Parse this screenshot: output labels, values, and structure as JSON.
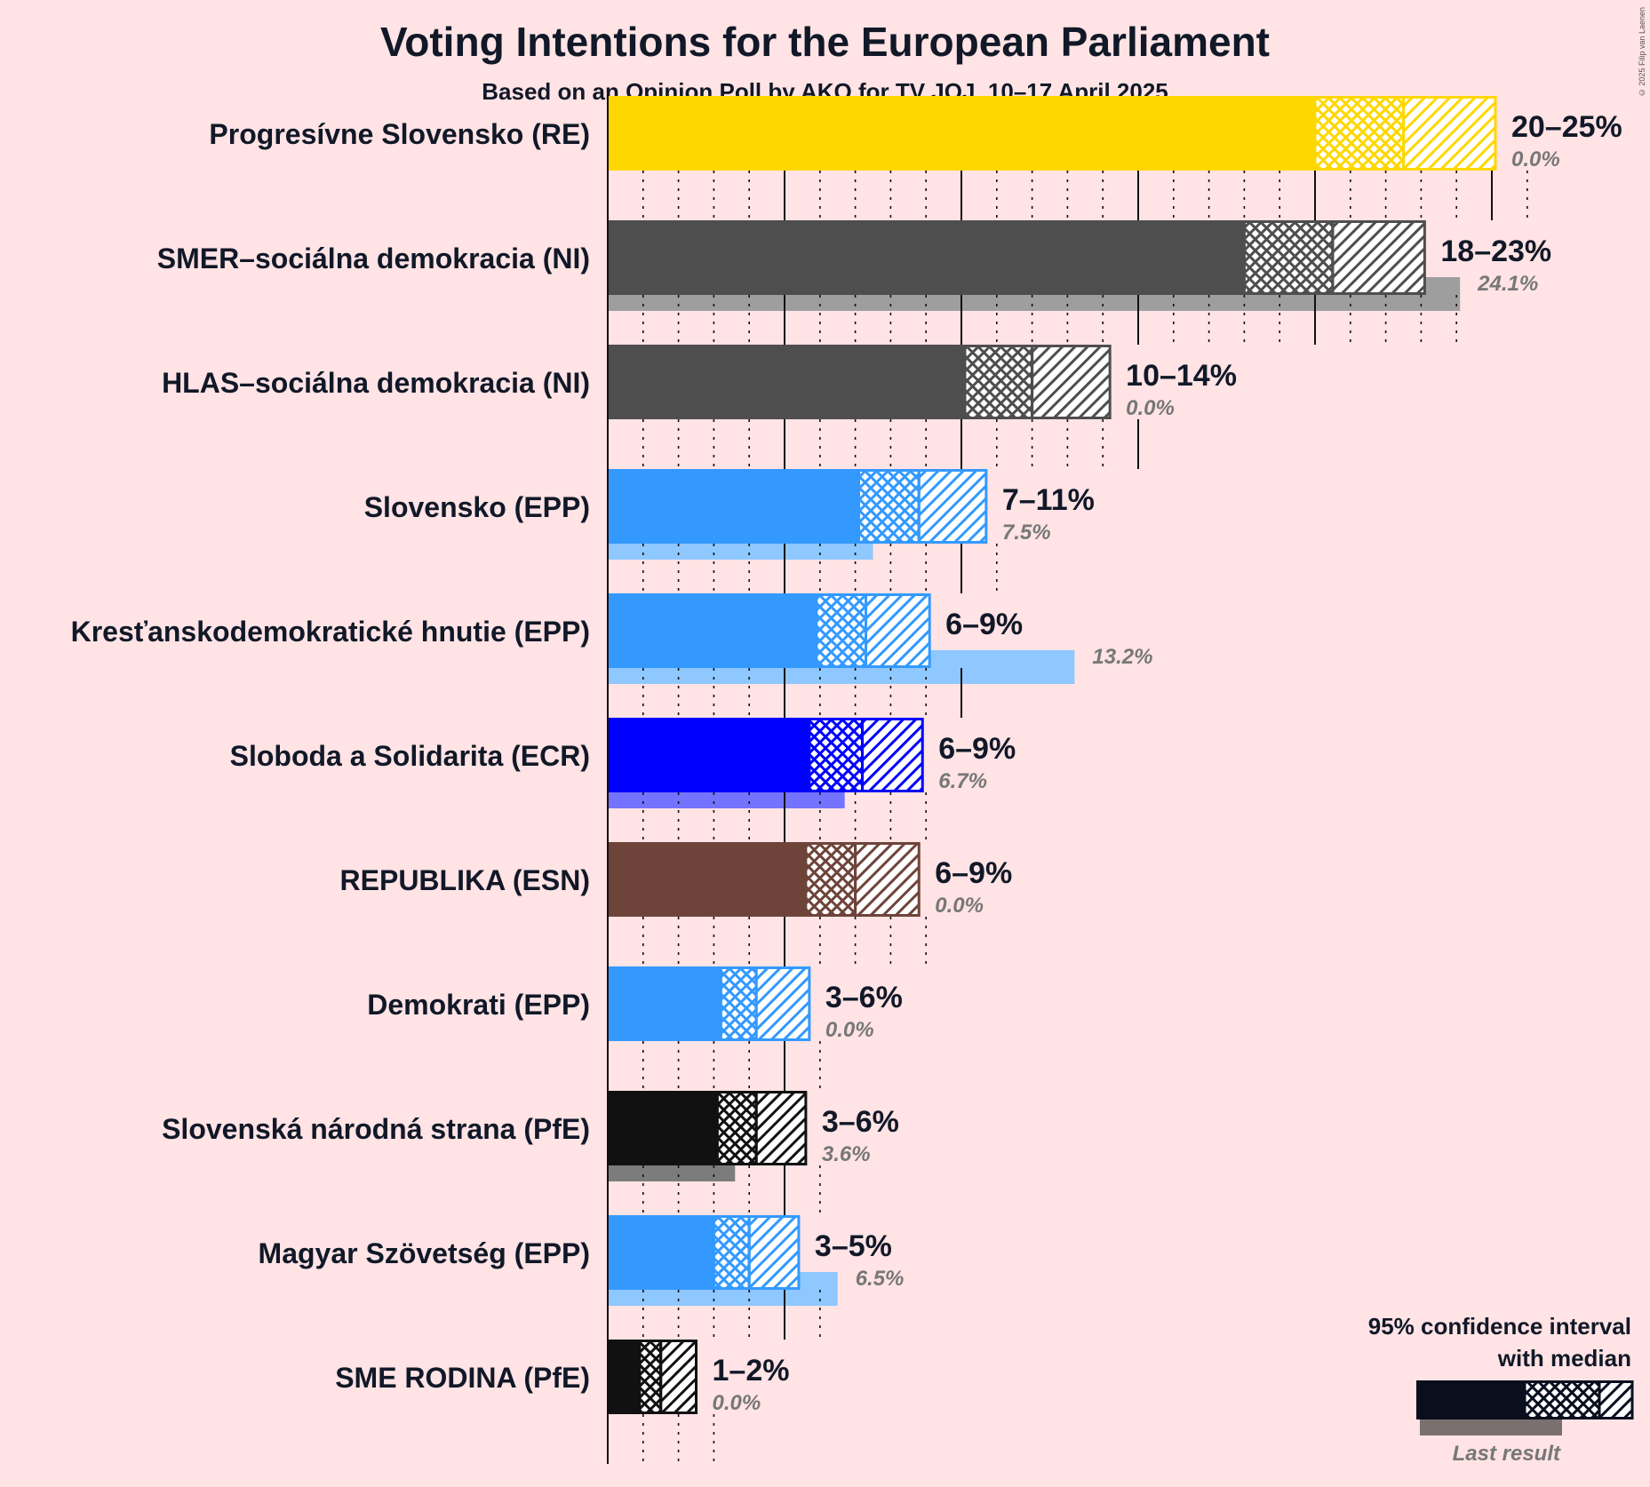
{
  "title": "Voting Intentions for the European Parliament",
  "subtitle": "Based on an Opinion Poll by AKO for TV JOJ, 10–17 April 2025",
  "copyright": "© 2025 Filip van Laenen",
  "legend": {
    "line1": "95% confidence interval",
    "line2": "with median",
    "last_result": "Last result",
    "color": "#0a0f1e"
  },
  "chart_data": {
    "type": "bar",
    "orientation": "horizontal",
    "value_unit": "%",
    "x_range": [
      0,
      25
    ],
    "grid": true,
    "legend_position": "bottom-right",
    "parties": [
      {
        "name": "Progresívne Slovensko (RE)",
        "low": 20,
        "median": 22.5,
        "high": 25.1,
        "range_label": "20–25%",
        "last": 0.0,
        "last_label": "0.0%",
        "color": "#ffd700"
      },
      {
        "name": "SMER–sociálna demokracia (NI)",
        "low": 18,
        "median": 20.5,
        "high": 23.1,
        "range_label": "18–23%",
        "last": 24.1,
        "last_label": "24.1%",
        "color": "#4e4e4e"
      },
      {
        "name": "HLAS–sociálna demokracia (NI)",
        "low": 10.1,
        "median": 12.0,
        "high": 14.2,
        "range_label": "10–14%",
        "last": 0.0,
        "last_label": "0.0%",
        "color": "#4e4e4e"
      },
      {
        "name": "Slovensko (EPP)",
        "low": 7.1,
        "median": 8.8,
        "high": 10.7,
        "range_label": "7–11%",
        "last": 7.5,
        "last_label": "7.5%",
        "color": "#3399ff"
      },
      {
        "name": "Kresťanskodemokratické hnutie (EPP)",
        "low": 5.9,
        "median": 7.3,
        "high": 9.1,
        "range_label": "6–9%",
        "last": 13.2,
        "last_label": "13.2%",
        "color": "#3399ff"
      },
      {
        "name": "Sloboda a Solidarita (ECR)",
        "low": 5.7,
        "median": 7.2,
        "high": 8.9,
        "range_label": "6–9%",
        "last": 6.7,
        "last_label": "6.7%",
        "color": "#0000ff"
      },
      {
        "name": "REPUBLIKA (ESN)",
        "low": 5.6,
        "median": 7.0,
        "high": 8.8,
        "range_label": "6–9%",
        "last": 0.0,
        "last_label": "0.0%",
        "color": "#6e443a"
      },
      {
        "name": "Demokrati (EPP)",
        "low": 3.2,
        "median": 4.2,
        "high": 5.7,
        "range_label": "3–6%",
        "last": 0.0,
        "last_label": "0.0%",
        "color": "#3399ff"
      },
      {
        "name": "Slovenská národná strana (PfE)",
        "low": 3.1,
        "median": 4.2,
        "high": 5.6,
        "range_label": "3–6%",
        "last": 3.6,
        "last_label": "3.6%",
        "color": "#111111"
      },
      {
        "name": "Magyar Szövetség (EPP)",
        "low": 3.0,
        "median": 4.0,
        "high": 5.4,
        "range_label": "3–5%",
        "last": 6.5,
        "last_label": "6.5%",
        "color": "#3399ff"
      },
      {
        "name": "SME RODINA (PfE)",
        "low": 0.9,
        "median": 1.5,
        "high": 2.5,
        "range_label": "1–2%",
        "last": 0.0,
        "last_label": "0.0%",
        "color": "#111111"
      }
    ]
  }
}
